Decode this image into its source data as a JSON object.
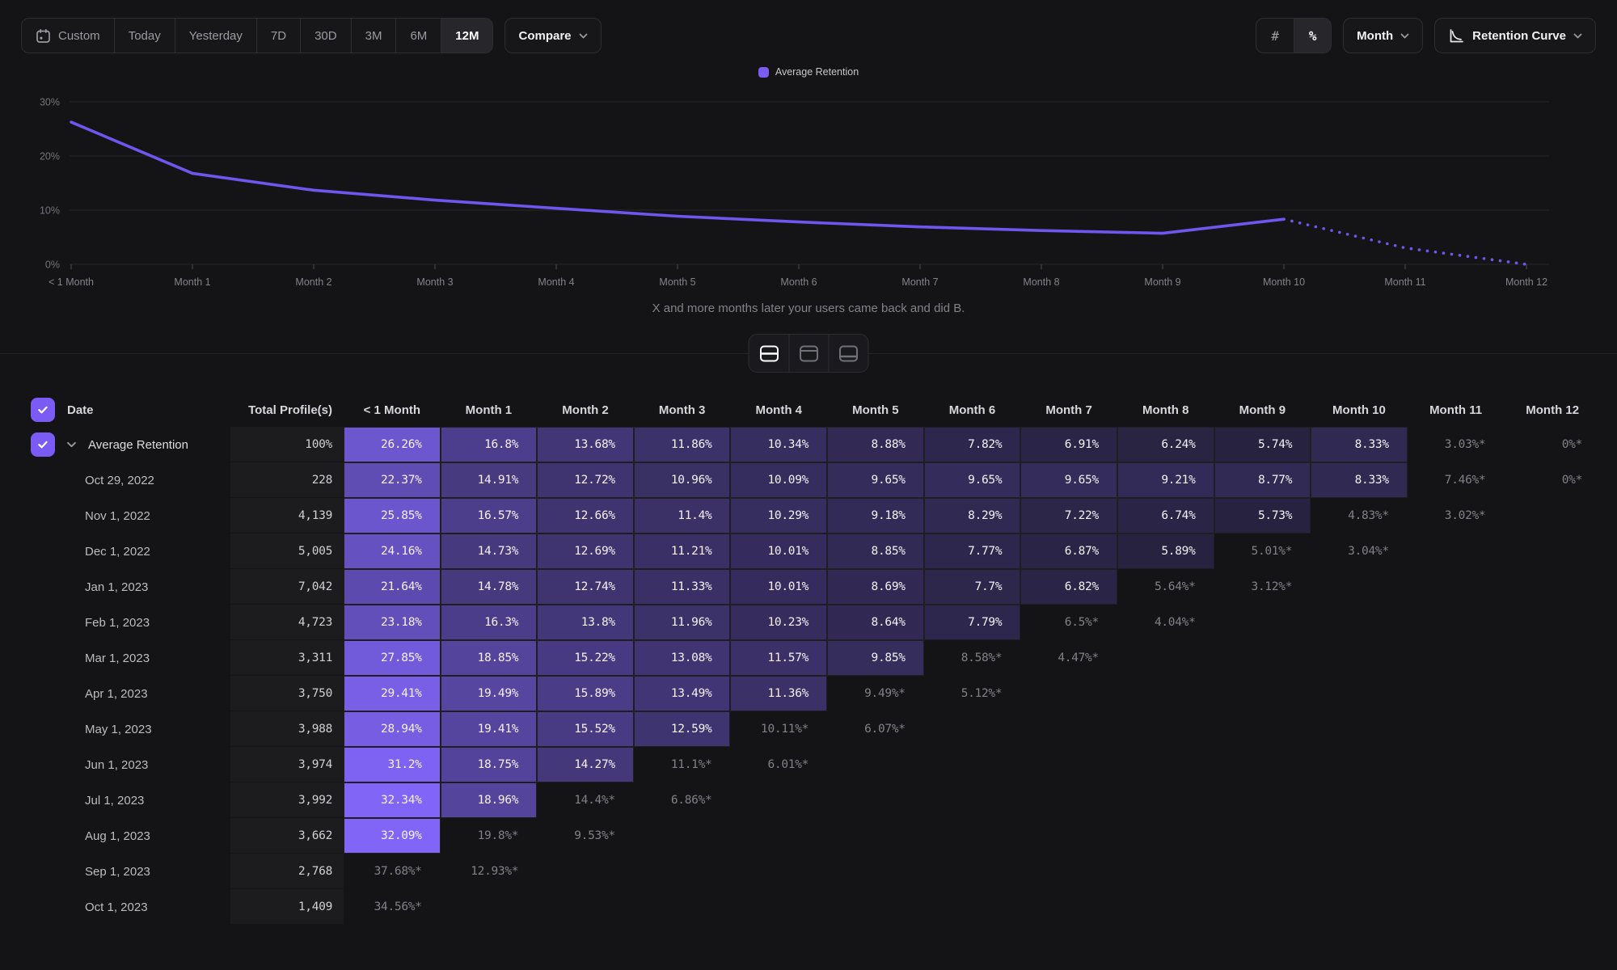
{
  "toolbar": {
    "date_ranges": [
      "Custom",
      "Today",
      "Yesterday",
      "7D",
      "30D",
      "3M",
      "6M",
      "12M"
    ],
    "selected_range": "12M",
    "compare_label": "Compare",
    "unit_options": [
      "#",
      "%"
    ],
    "selected_unit": "%",
    "granularity": "Month",
    "chart_type": "Retention Curve"
  },
  "chart_data": {
    "type": "line",
    "legend": "Average Retention",
    "x_labels": [
      "< 1 Month",
      "Month 1",
      "Month 2",
      "Month 3",
      "Month 4",
      "Month 5",
      "Month 6",
      "Month 7",
      "Month 8",
      "Month 9",
      "Month 10",
      "Month 11",
      "Month 12"
    ],
    "values": [
      26.26,
      16.8,
      13.68,
      11.86,
      10.34,
      8.88,
      7.82,
      6.91,
      6.24,
      5.74,
      8.33,
      3.03,
      0
    ],
    "dotted_from_index": 10,
    "y_ticks": [
      "0%",
      "10%",
      "20%",
      "30%"
    ],
    "ylim": [
      0,
      30
    ],
    "grid": true,
    "legend_position": "top-center",
    "line_color": "#6f56ee",
    "subtitle": "X and more months later your users came back and did B."
  },
  "view_toggle": {
    "options": [
      "split-view",
      "top-panel-view",
      "bottom-panel-view"
    ],
    "selected": "split-view"
  },
  "table": {
    "heat_color_rgb": [
      132,
      104,
      255
    ],
    "columns": [
      "Date",
      "Total Profile(s)",
      "< 1 Month",
      "Month 1",
      "Month 2",
      "Month 3",
      "Month 4",
      "Month 5",
      "Month 6",
      "Month 7",
      "Month 8",
      "Month 9",
      "Month 10",
      "Month 11",
      "Month 12"
    ],
    "rows": [
      {
        "date": "Average Retention",
        "summary": true,
        "checked": true,
        "expandable": true,
        "profiles": "100%",
        "cells": [
          "26.26%",
          "16.8%",
          "13.68%",
          "11.86%",
          "10.34%",
          "8.88%",
          "7.82%",
          "6.91%",
          "6.24%",
          "5.74%",
          "8.33%",
          "3.03%*",
          "0%*"
        ]
      },
      {
        "date": "Oct 29, 2022",
        "profiles": "228",
        "cells": [
          "22.37%",
          "14.91%",
          "12.72%",
          "10.96%",
          "10.09%",
          "9.65%",
          "9.65%",
          "9.65%",
          "9.21%",
          "8.77%",
          "8.33%",
          "7.46%*",
          "0%*"
        ]
      },
      {
        "date": "Nov 1, 2022",
        "profiles": "4,139",
        "cells": [
          "25.85%",
          "16.57%",
          "12.66%",
          "11.4%",
          "10.29%",
          "9.18%",
          "8.29%",
          "7.22%",
          "6.74%",
          "5.73%",
          "4.83%*",
          "3.02%*",
          ""
        ]
      },
      {
        "date": "Dec 1, 2022",
        "profiles": "5,005",
        "cells": [
          "24.16%",
          "14.73%",
          "12.69%",
          "11.21%",
          "10.01%",
          "8.85%",
          "7.77%",
          "6.87%",
          "5.89%",
          "5.01%*",
          "3.04%*",
          "",
          ""
        ]
      },
      {
        "date": "Jan 1, 2023",
        "profiles": "7,042",
        "cells": [
          "21.64%",
          "14.78%",
          "12.74%",
          "11.33%",
          "10.01%",
          "8.69%",
          "7.7%",
          "6.82%",
          "5.64%*",
          "3.12%*",
          "",
          "",
          ""
        ]
      },
      {
        "date": "Feb 1, 2023",
        "profiles": "4,723",
        "cells": [
          "23.18%",
          "16.3%",
          "13.8%",
          "11.96%",
          "10.23%",
          "8.64%",
          "7.79%",
          "6.5%*",
          "4.04%*",
          "",
          "",
          "",
          ""
        ]
      },
      {
        "date": "Mar 1, 2023",
        "profiles": "3,311",
        "cells": [
          "27.85%",
          "18.85%",
          "15.22%",
          "13.08%",
          "11.57%",
          "9.85%",
          "8.58%*",
          "4.47%*",
          "",
          "",
          "",
          "",
          ""
        ]
      },
      {
        "date": "Apr 1, 2023",
        "profiles": "3,750",
        "cells": [
          "29.41%",
          "19.49%",
          "15.89%",
          "13.49%",
          "11.36%",
          "9.49%*",
          "5.12%*",
          "",
          "",
          "",
          "",
          "",
          ""
        ]
      },
      {
        "date": "May 1, 2023",
        "profiles": "3,988",
        "cells": [
          "28.94%",
          "19.41%",
          "15.52%",
          "12.59%",
          "10.11%*",
          "6.07%*",
          "",
          "",
          "",
          "",
          "",
          "",
          ""
        ]
      },
      {
        "date": "Jun 1, 2023",
        "profiles": "3,974",
        "cells": [
          "31.2%",
          "18.75%",
          "14.27%",
          "11.1%*",
          "6.01%*",
          "",
          "",
          "",
          "",
          "",
          "",
          "",
          ""
        ]
      },
      {
        "date": "Jul 1, 2023",
        "profiles": "3,992",
        "cells": [
          "32.34%",
          "18.96%",
          "14.4%*",
          "6.86%*",
          "",
          "",
          "",
          "",
          "",
          "",
          "",
          "",
          ""
        ]
      },
      {
        "date": "Aug 1, 2023",
        "profiles": "3,662",
        "cells": [
          "32.09%",
          "19.8%*",
          "9.53%*",
          "",
          "",
          "",
          "",
          "",
          "",
          "",
          "",
          "",
          ""
        ]
      },
      {
        "date": "Sep 1, 2023",
        "profiles": "2,768",
        "cells": [
          "37.68%*",
          "12.93%*",
          "",
          "",
          "",
          "",
          "",
          "",
          "",
          "",
          "",
          "",
          ""
        ]
      },
      {
        "date": "Oct 1, 2023",
        "profiles": "1,409",
        "cells": [
          "34.56%*",
          "",
          "",
          "",
          "",
          "",
          "",
          "",
          "",
          "",
          "",
          "",
          ""
        ]
      }
    ]
  }
}
